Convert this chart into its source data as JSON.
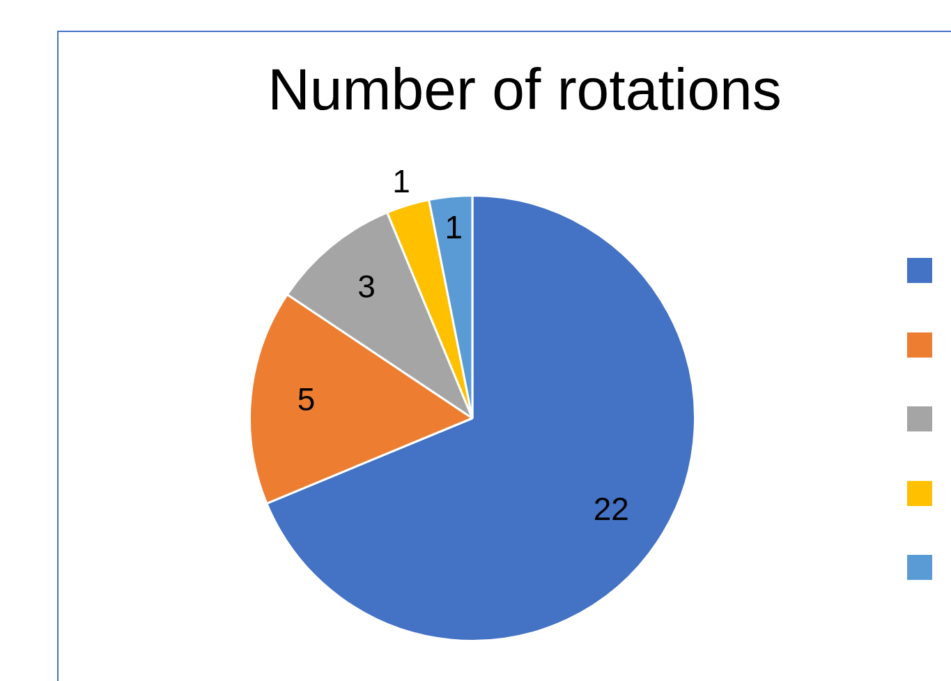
{
  "chart_data": {
    "type": "pie",
    "title": "Number of rotations",
    "categories": [
      null,
      null,
      null,
      null,
      null
    ],
    "values": [
      22,
      5,
      3,
      1,
      1
    ],
    "colors": [
      "#4472c4",
      "#ed7d31",
      "#a5a5a5",
      "#ffc000",
      "#5b9bd5"
    ],
    "data_labels": true
  }
}
